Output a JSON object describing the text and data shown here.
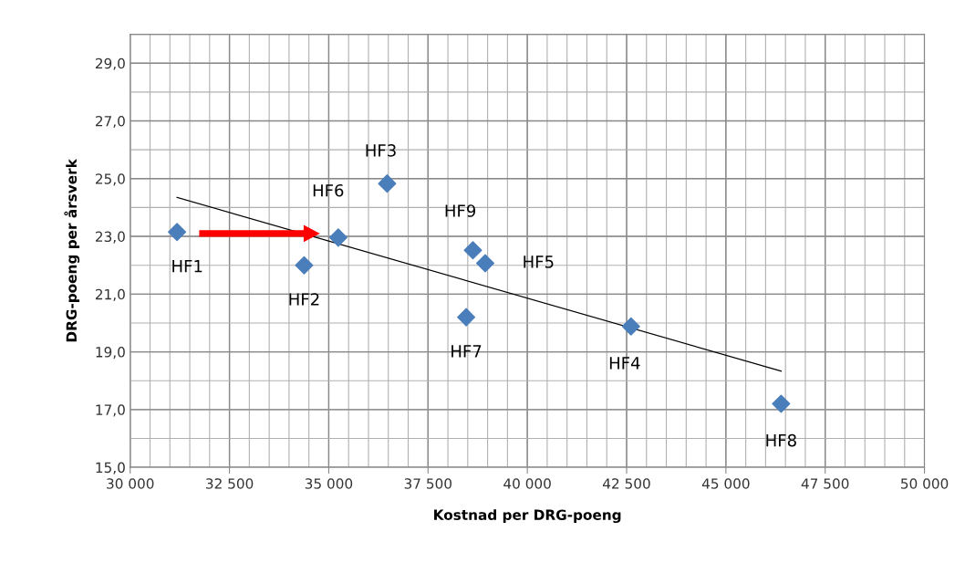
{
  "chart_data": {
    "type": "scatter",
    "xlabel": "Kostnad per DRG-poeng",
    "ylabel": "DRG-poeng per årsverk",
    "xlim": [
      30000,
      50000
    ],
    "ylim": [
      15,
      30
    ],
    "xticks": [
      {
        "value": 30000,
        "label": "30 000"
      },
      {
        "value": 32500,
        "label": "32 500"
      },
      {
        "value": 35000,
        "label": "35 000"
      },
      {
        "value": 37500,
        "label": "37 500"
      },
      {
        "value": 40000,
        "label": "40 000"
      },
      {
        "value": 42500,
        "label": "42 500"
      },
      {
        "value": 45000,
        "label": "45 000"
      },
      {
        "value": 47500,
        "label": "47 500"
      },
      {
        "value": 50000,
        "label": "50 000"
      }
    ],
    "yticks": [
      {
        "value": 15,
        "label": "15,0"
      },
      {
        "value": 17,
        "label": "17,0"
      },
      {
        "value": 19,
        "label": "19,0"
      },
      {
        "value": 21,
        "label": "21,0"
      },
      {
        "value": 23,
        "label": "23,0"
      },
      {
        "value": 25,
        "label": "25,0"
      },
      {
        "value": 27,
        "label": "27,0"
      },
      {
        "value": 29,
        "label": "29,0"
      }
    ],
    "grid": true,
    "series": [
      {
        "color": "#4a7ebb",
        "marker": "diamond",
        "x": [
          31180,
          34380,
          36470,
          42610,
          38940,
          35240,
          38460,
          46390,
          38630
        ],
        "values": [
          23.15,
          22.0,
          24.83,
          19.88,
          22.07,
          22.96,
          20.2,
          17.2,
          22.52
        ]
      },
      {
        "type": "line",
        "color": "#000000",
        "marker": "none",
        "line_style": "solid",
        "x": [
          31180,
          46390
        ],
        "values": [
          24.35,
          18.33
        ]
      }
    ],
    "annotations": [
      {
        "text": "HF1",
        "x": 31180,
        "y": 23.15
      },
      {
        "text": "HF2",
        "x": 34380,
        "y": 22.0
      },
      {
        "text": "HF3",
        "x": 36470,
        "y": 24.83
      },
      {
        "text": "HF4",
        "x": 42610,
        "y": 19.88
      },
      {
        "text": "HF5",
        "x": 38940,
        "y": 22.07
      },
      {
        "text": "HF6",
        "x": 35240,
        "y": 22.96
      },
      {
        "text": "HF7",
        "x": 38460,
        "y": 20.2
      },
      {
        "text": "HF8",
        "x": 46390,
        "y": 17.2
      },
      {
        "text": "HF9",
        "x": 38630,
        "y": 22.52
      }
    ]
  }
}
